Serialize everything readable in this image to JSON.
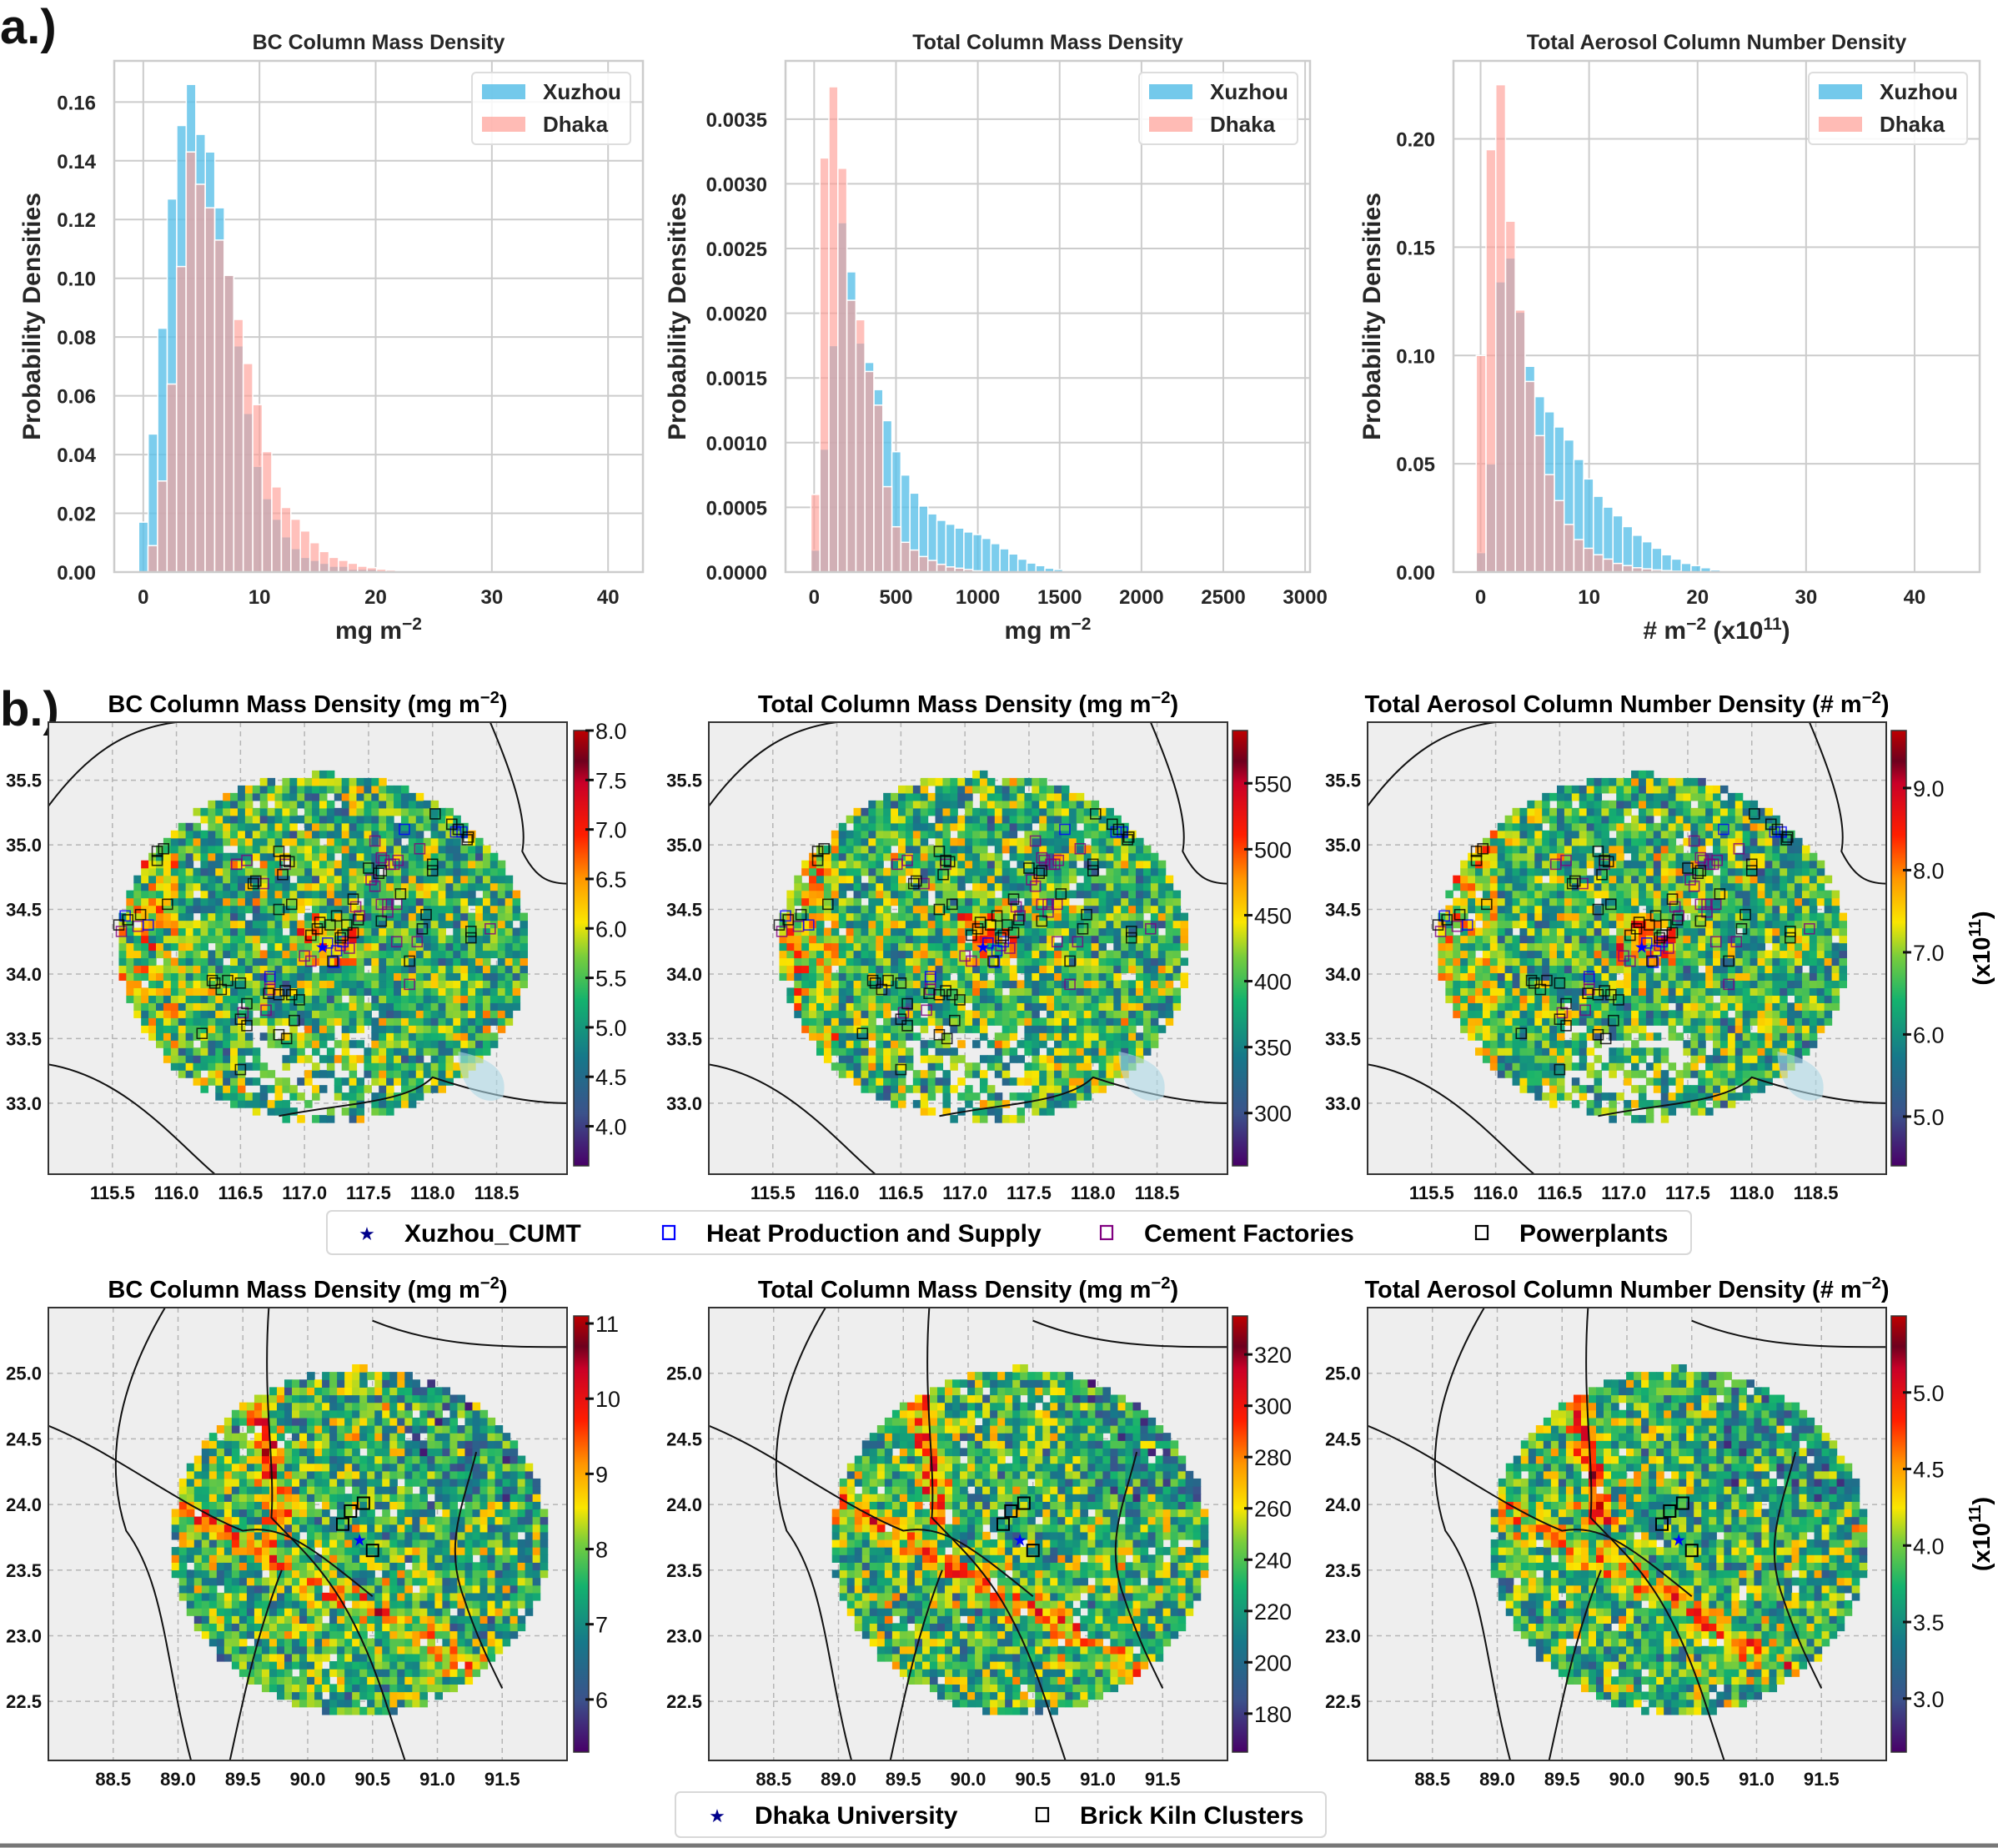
{
  "panels": {
    "a_label": "a.)",
    "b_label": "b.)"
  },
  "chart_data": [
    {
      "type": "bar",
      "id": "hist-bc",
      "title": "BC Column Mass Density",
      "xlabel": "mg m",
      "xlabel_sup": "−2",
      "ylabel": "Probability Densities",
      "xlim": [
        -2.5,
        43
      ],
      "ylim": [
        0,
        0.174
      ],
      "xticks": [
        0,
        10,
        20,
        30,
        40
      ],
      "yticks": [
        0.0,
        0.02,
        0.04,
        0.06,
        0.08,
        0.1,
        0.12,
        0.14,
        0.16
      ],
      "ytick_labels": [
        "0.00",
        "0.02",
        "0.04",
        "0.06",
        "0.08",
        "0.10",
        "0.12",
        "0.14",
        "0.16"
      ],
      "grid": true,
      "legend_position": "top-right",
      "bin_width": 0.82,
      "series": [
        {
          "name": "Xuzhou",
          "color": "#5bc0e8",
          "start": -0.4,
          "values": [
            0.017,
            0.047,
            0.083,
            0.127,
            0.152,
            0.166,
            0.149,
            0.143,
            0.124,
            0.101,
            0.077,
            0.054,
            0.036,
            0.025,
            0.018,
            0.012,
            0.008,
            0.005,
            0.004,
            0.003,
            0.002,
            0.002,
            0.001,
            0.001,
            0.001,
            0.0005,
            0.0004,
            0.0003,
            0.0002,
            0.0001
          ]
        },
        {
          "name": "Dhaka",
          "color": "#ff9e96",
          "start": 0.4,
          "values": [
            0.009,
            0.031,
            0.064,
            0.104,
            0.143,
            0.132,
            0.124,
            0.113,
            0.101,
            0.086,
            0.071,
            0.057,
            0.041,
            0.029,
            0.022,
            0.018,
            0.014,
            0.01,
            0.007,
            0.005,
            0.004,
            0.003,
            0.002,
            0.0015,
            0.001,
            0.0007,
            0.0005,
            0.0003
          ]
        }
      ]
    },
    {
      "type": "bar",
      "id": "hist-total-mass",
      "title": "Total Column Mass Density",
      "xlabel": "mg m",
      "xlabel_sup": "−2",
      "ylabel": "Probability Densities",
      "xlim": [
        -175,
        3030
      ],
      "ylim": [
        0,
        0.00395
      ],
      "xticks": [
        0,
        500,
        1000,
        1500,
        2000,
        2500,
        3000
      ],
      "yticks": [
        0,
        0.0005,
        0.001,
        0.0015,
        0.002,
        0.0025,
        0.003,
        0.0035
      ],
      "ytick_labels": [
        "0.0000",
        "0.0005",
        "0.0010",
        "0.0015",
        "0.0020",
        "0.0025",
        "0.0030",
        "0.0035"
      ],
      "grid": true,
      "legend_position": "top-right",
      "bin_width": 55,
      "series": [
        {
          "name": "Xuzhou",
          "color": "#5bc0e8",
          "start": -20,
          "values": [
            0.00017,
            0.00095,
            0.00175,
            0.0027,
            0.00232,
            0.00177,
            0.00162,
            0.00141,
            0.00117,
            0.00093,
            0.00075,
            0.00061,
            0.00051,
            0.00045,
            0.0004,
            0.00037,
            0.00034,
            0.00031,
            0.00029,
            0.00026,
            0.00022,
            0.00018,
            0.00014,
            0.0001,
            7e-05,
            5e-05,
            3e-05,
            2e-05,
            1e-05
          ]
        },
        {
          "name": "Dhaka",
          "color": "#ff9e96",
          "start": -20,
          "values": [
            0.0006,
            0.0032,
            0.00375,
            0.00312,
            0.0021,
            0.00195,
            0.00155,
            0.00129,
            0.00066,
            0.00035,
            0.00023,
            0.00017,
            0.00012,
            9e-05,
            6e-05,
            4e-05,
            3e-05,
            2e-05,
            1e-05
          ]
        }
      ]
    },
    {
      "type": "bar",
      "id": "hist-number",
      "title": "Total Aerosol Column Number Density",
      "xlabel": "# m",
      "xlabel_sup": "−2",
      "xlabel_suffix": " (x10",
      "xlabel_suffix_sup": "11",
      "xlabel_end": ")",
      "ylabel": "Probability Densities",
      "xlim": [
        -2.5,
        46
      ],
      "ylim": [
        0,
        0.236
      ],
      "xticks": [
        0,
        10,
        20,
        30,
        40
      ],
      "yticks": [
        0.0,
        0.05,
        0.1,
        0.15,
        0.2
      ],
      "ytick_labels": [
        "0.00",
        "0.05",
        "0.10",
        "0.15",
        "0.20"
      ],
      "grid": true,
      "legend_position": "top-right",
      "bin_width": 0.9,
      "series": [
        {
          "name": "Xuzhou",
          "color": "#5bc0e8",
          "start": -0.4,
          "values": [
            0.009,
            0.05,
            0.134,
            0.145,
            0.12,
            0.095,
            0.081,
            0.074,
            0.067,
            0.061,
            0.052,
            0.043,
            0.035,
            0.03,
            0.026,
            0.021,
            0.017,
            0.014,
            0.011,
            0.008,
            0.006,
            0.004,
            0.003,
            0.002,
            0.001,
            0.0005
          ]
        },
        {
          "name": "Dhaka",
          "color": "#ff9e96",
          "start": -0.4,
          "values": [
            0.1,
            0.195,
            0.225,
            0.162,
            0.121,
            0.088,
            0.063,
            0.045,
            0.033,
            0.022,
            0.015,
            0.011,
            0.008,
            0.006,
            0.004,
            0.003,
            0.002,
            0.0015,
            0.001,
            0.0007,
            0.0004
          ]
        }
      ]
    },
    {
      "type": "heatmap",
      "id": "map-xz-bc",
      "title": "BC Column Mass Density (mg m",
      "title_sup": "−2",
      "title_end": ")",
      "region": "Xuzhou",
      "xlim": [
        115.0,
        119.05
      ],
      "ylim": [
        32.45,
        35.95
      ],
      "xticks": [
        115.5,
        116.0,
        116.5,
        117.0,
        117.5,
        118.0,
        118.5
      ],
      "yticks": [
        33.0,
        33.5,
        34.0,
        34.5,
        35.0,
        35.5
      ],
      "center": [
        117.15,
        34.2
      ],
      "radius_deg": [
        1.6,
        1.35
      ],
      "colorbar": {
        "range": [
          3.6,
          8.0
        ],
        "ticks": [
          4.0,
          4.5,
          5.0,
          5.5,
          6.0,
          6.5,
          7.0,
          7.5,
          8.0
        ],
        "tick_labels": [
          "4.0",
          "4.5",
          "5.0",
          "5.5",
          "6.0",
          "6.5",
          "7.0",
          "7.5",
          "8.0"
        ],
        "label": ""
      }
    },
    {
      "type": "heatmap",
      "id": "map-xz-mass",
      "title": "Total Column Mass Density (mg m",
      "title_sup": "−2",
      "title_end": ")",
      "region": "Xuzhou",
      "xlim": [
        115.0,
        119.05
      ],
      "ylim": [
        32.45,
        35.95
      ],
      "xticks": [
        115.5,
        116.0,
        116.5,
        117.0,
        117.5,
        118.0,
        118.5
      ],
      "yticks": [
        33.0,
        33.5,
        34.0,
        34.5,
        35.0,
        35.5
      ],
      "center": [
        117.15,
        34.2
      ],
      "radius_deg": [
        1.6,
        1.35
      ],
      "colorbar": {
        "range": [
          260,
          590
        ],
        "ticks": [
          300,
          350,
          400,
          450,
          500,
          550
        ],
        "tick_labels": [
          "300",
          "350",
          "400",
          "450",
          "500",
          "550"
        ],
        "label": ""
      }
    },
    {
      "type": "heatmap",
      "id": "map-xz-number",
      "title": "Total Aerosol Column Number Density (# m",
      "title_sup": "−2",
      "title_end": ")",
      "region": "Xuzhou",
      "xlim": [
        115.0,
        119.05
      ],
      "ylim": [
        32.45,
        35.95
      ],
      "xticks": [
        115.5,
        116.0,
        116.5,
        117.0,
        117.5,
        118.0,
        118.5
      ],
      "yticks": [
        33.0,
        33.5,
        34.0,
        34.5,
        35.0,
        35.5
      ],
      "center": [
        117.15,
        34.2
      ],
      "radius_deg": [
        1.6,
        1.35
      ],
      "colorbar": {
        "range": [
          4.4,
          9.7
        ],
        "ticks": [
          5.0,
          6.0,
          7.0,
          8.0,
          9.0
        ],
        "tick_labels": [
          "5.0",
          "6.0",
          "7.0",
          "8.0",
          "9.0"
        ],
        "label": "(x10",
        "label_sup": "11",
        "label_end": ")"
      }
    },
    {
      "type": "heatmap",
      "id": "map-dk-bc",
      "title": "BC Column Mass Density (mg m",
      "title_sup": "−2",
      "title_end": ")",
      "region": "Dhaka",
      "xlim": [
        88.0,
        92.0
      ],
      "ylim": [
        22.05,
        25.5
      ],
      "xticks": [
        88.5,
        89.0,
        89.5,
        90.0,
        90.5,
        91.0,
        91.5
      ],
      "yticks": [
        22.5,
        23.0,
        23.5,
        24.0,
        24.5,
        25.0
      ],
      "center": [
        90.4,
        23.72
      ],
      "radius_deg": [
        1.45,
        1.32
      ],
      "colorbar": {
        "range": [
          5.3,
          11.1
        ],
        "ticks": [
          6,
          7,
          8,
          9,
          10,
          11
        ],
        "tick_labels": [
          "6",
          "7",
          "8",
          "9",
          "10",
          "11"
        ],
        "label": ""
      }
    },
    {
      "type": "heatmap",
      "id": "map-dk-mass",
      "title": "Total Column Mass Density (mg m",
      "title_sup": "−2",
      "title_end": ")",
      "region": "Dhaka",
      "xlim": [
        88.0,
        92.0
      ],
      "ylim": [
        22.05,
        25.5
      ],
      "xticks": [
        88.5,
        89.0,
        89.5,
        90.0,
        90.5,
        91.0,
        91.5
      ],
      "yticks": [
        22.5,
        23.0,
        23.5,
        24.0,
        24.5,
        25.0
      ],
      "center": [
        90.4,
        23.72
      ],
      "radius_deg": [
        1.45,
        1.32
      ],
      "colorbar": {
        "range": [
          165,
          335
        ],
        "ticks": [
          180,
          200,
          220,
          240,
          260,
          280,
          300,
          320
        ],
        "tick_labels": [
          "180",
          "200",
          "220",
          "240",
          "260",
          "280",
          "300",
          "320"
        ],
        "label": ""
      }
    },
    {
      "type": "heatmap",
      "id": "map-dk-number",
      "title": "Total Aerosol Column Number Density (# m",
      "title_sup": "−2",
      "title_end": ")",
      "region": "Dhaka",
      "xlim": [
        88.0,
        92.0
      ],
      "ylim": [
        22.05,
        25.5
      ],
      "xticks": [
        88.5,
        89.0,
        89.5,
        90.0,
        90.5,
        91.0,
        91.5
      ],
      "yticks": [
        22.5,
        23.0,
        23.5,
        24.0,
        24.5,
        25.0
      ],
      "center": [
        90.4,
        23.72
      ],
      "radius_deg": [
        1.45,
        1.32
      ],
      "colorbar": {
        "range": [
          2.65,
          5.5
        ],
        "ticks": [
          3.0,
          3.5,
          4.0,
          4.5,
          5.0
        ],
        "tick_labels": [
          "3.0",
          "3.5",
          "4.0",
          "4.5",
          "5.0"
        ],
        "label": "(x10",
        "label_sup": "11",
        "label_end": ")"
      }
    }
  ],
  "legends": {
    "xuzhou": [
      {
        "label": "Xuzhou_CUMT",
        "marker": "star",
        "color": "#00008b"
      },
      {
        "label": "Heat Production and Supply",
        "marker": "square",
        "color": "#0000ff"
      },
      {
        "label": "Cement Factories",
        "marker": "square",
        "color": "#800080"
      },
      {
        "label": "Powerplants",
        "marker": "square",
        "color": "#000000"
      }
    ],
    "dhaka": [
      {
        "label": "Dhaka University",
        "marker": "star",
        "color": "#00008b"
      },
      {
        "label": "Brick Kiln Clusters",
        "marker": "square",
        "color": "#000000"
      }
    ]
  },
  "sites": {
    "xuzhou_cumt": [
      117.14,
      34.21
    ],
    "dhaka_university": [
      90.4,
      23.73
    ]
  },
  "markers_xuzhou": {
    "powerplants": [
      [
        115.55,
        34.38
      ],
      [
        115.62,
        34.42
      ],
      [
        115.72,
        34.46
      ],
      [
        115.85,
        34.95
      ],
      [
        115.9,
        34.97
      ],
      [
        115.85,
        34.88
      ],
      [
        115.93,
        34.54
      ],
      [
        116.28,
        33.95
      ],
      [
        116.3,
        33.93
      ],
      [
        116.4,
        33.95
      ],
      [
        116.35,
        33.88
      ],
      [
        116.5,
        33.93
      ],
      [
        116.55,
        33.77
      ],
      [
        116.55,
        33.6
      ],
      [
        116.5,
        33.65
      ],
      [
        116.2,
        33.54
      ],
      [
        116.5,
        33.26
      ],
      [
        116.62,
        34.72
      ],
      [
        116.6,
        34.7
      ],
      [
        116.8,
        34.95
      ],
      [
        116.85,
        34.88
      ],
      [
        116.88,
        34.87
      ],
      [
        116.83,
        34.77
      ],
      [
        116.8,
        34.5
      ],
      [
        116.9,
        34.54
      ],
      [
        116.72,
        33.85
      ],
      [
        116.8,
        33.84
      ],
      [
        116.85,
        33.87
      ],
      [
        116.9,
        33.84
      ],
      [
        116.96,
        33.8
      ],
      [
        116.92,
        33.64
      ],
      [
        116.8,
        33.53
      ],
      [
        116.86,
        33.5
      ],
      [
        117.05,
        34.3
      ],
      [
        117.1,
        34.35
      ],
      [
        117.12,
        34.4
      ],
      [
        117.2,
        34.38
      ],
      [
        117.25,
        34.45
      ],
      [
        117.3,
        34.3
      ],
      [
        117.33,
        34.38
      ],
      [
        117.38,
        34.32
      ],
      [
        117.28,
        34.28
      ],
      [
        117.22,
        34.1
      ],
      [
        117.38,
        34.58
      ],
      [
        117.42,
        34.42
      ],
      [
        117.58,
        34.78
      ],
      [
        117.6,
        34.8
      ],
      [
        117.5,
        34.82
      ],
      [
        117.6,
        34.41
      ],
      [
        117.75,
        34.62
      ],
      [
        117.82,
        34.1
      ],
      [
        117.92,
        34.35
      ],
      [
        117.95,
        34.46
      ],
      [
        118.0,
        34.85
      ],
      [
        118.0,
        34.8
      ],
      [
        118.02,
        35.24
      ],
      [
        118.15,
        35.16
      ],
      [
        118.2,
        35.12
      ],
      [
        118.27,
        35.04
      ],
      [
        118.28,
        35.06
      ],
      [
        118.3,
        34.33
      ],
      [
        118.3,
        34.28
      ]
    ],
    "cement": [
      [
        115.57,
        34.33
      ],
      [
        115.7,
        34.37
      ],
      [
        116.47,
        34.85
      ],
      [
        116.55,
        34.88
      ],
      [
        116.68,
        34.7
      ],
      [
        116.85,
        34.85
      ],
      [
        116.73,
        33.96
      ],
      [
        116.52,
        33.7
      ],
      [
        116.7,
        33.72
      ],
      [
        116.73,
        33.88
      ],
      [
        117.0,
        34.14
      ],
      [
        117.05,
        34.1
      ],
      [
        117.28,
        34.22
      ],
      [
        117.4,
        34.52
      ],
      [
        117.43,
        34.45
      ],
      [
        117.35,
        34.2
      ],
      [
        117.52,
        34.73
      ],
      [
        117.55,
        34.68
      ],
      [
        117.55,
        35.03
      ],
      [
        117.6,
        34.9
      ],
      [
        117.62,
        34.88
      ],
      [
        117.67,
        34.85
      ],
      [
        117.7,
        34.85
      ],
      [
        117.73,
        34.88
      ],
      [
        117.65,
        34.54
      ],
      [
        117.65,
        34.48
      ],
      [
        117.72,
        34.54
      ],
      [
        117.6,
        34.54
      ],
      [
        117.72,
        34.25
      ],
      [
        117.88,
        34.25
      ],
      [
        117.9,
        34.97
      ],
      [
        118.45,
        34.35
      ],
      [
        117.82,
        33.92
      ]
    ],
    "heat": [
      [
        115.6,
        34.45
      ],
      [
        115.78,
        34.38
      ],
      [
        116.73,
        33.98
      ],
      [
        117.18,
        34.24
      ],
      [
        117.25,
        34.18
      ],
      [
        117.23,
        34.09
      ],
      [
        117.3,
        34.25
      ],
      [
        117.78,
        35.12
      ],
      [
        118.18,
        35.1
      ],
      [
        118.23,
        35.1
      ]
    ]
  },
  "markers_dhaka": {
    "kilns": [
      [
        90.33,
        23.95
      ],
      [
        90.27,
        23.85
      ],
      [
        90.43,
        24.01
      ],
      [
        90.5,
        23.65
      ]
    ]
  }
}
